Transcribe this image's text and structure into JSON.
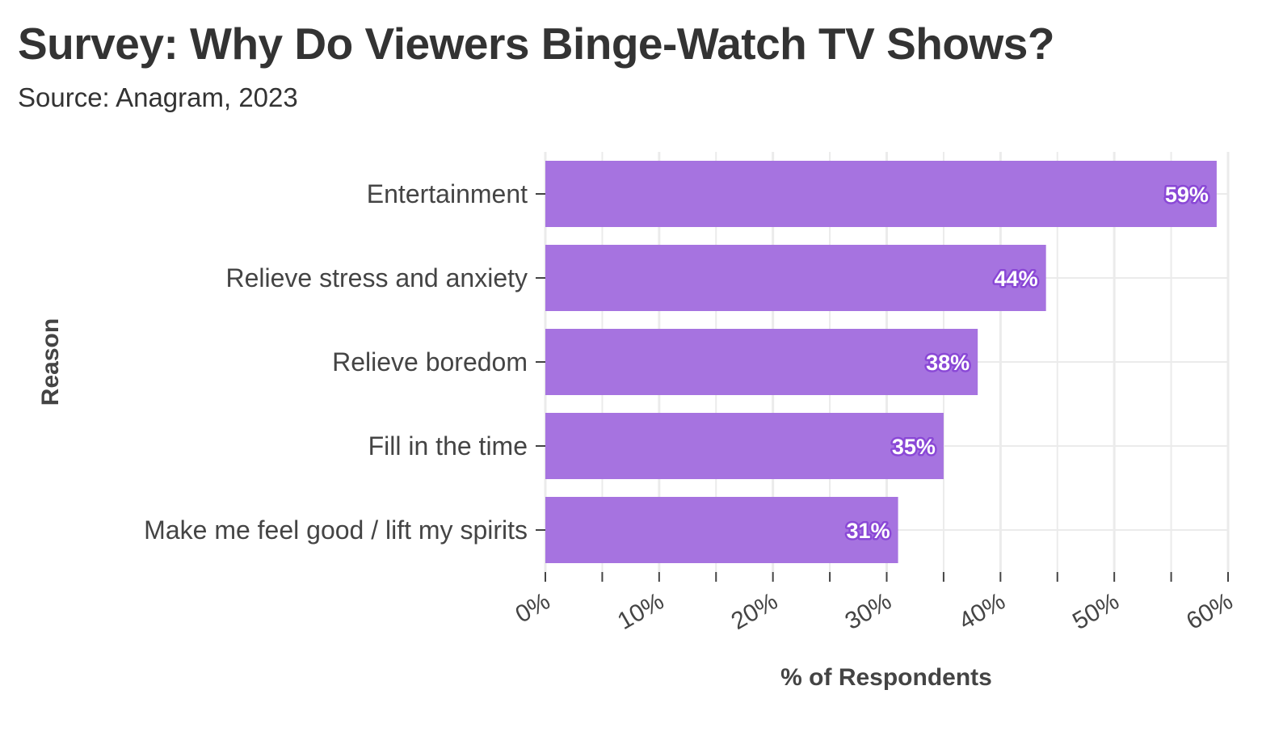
{
  "header": {
    "title": "Survey: Why Do Viewers Binge-Watch TV Shows?",
    "subtitle": "Source: Anagram, 2023"
  },
  "colors": {
    "bar": "#a673e0",
    "bar_label_outline": "#8a48d6",
    "grid": "#ebebeb",
    "text": "#333333"
  },
  "chart_data": {
    "type": "bar",
    "orientation": "horizontal",
    "title": "Survey: Why Do Viewers Binge-Watch TV Shows?",
    "subtitle": "Source: Anagram, 2023",
    "xlabel": "% of Respondents",
    "ylabel": "Reason",
    "categories": [
      "Entertainment",
      "Relieve stress and anxiety",
      "Relieve boredom",
      "Fill in the time",
      "Make me feel good / lift my spirits"
    ],
    "values": [
      59,
      44,
      38,
      35,
      31
    ],
    "value_labels": [
      "59%",
      "44%",
      "38%",
      "35%",
      "31%"
    ],
    "xlim": [
      0,
      60
    ],
    "xticks": [
      0,
      10,
      20,
      30,
      40,
      50,
      60
    ],
    "xtick_labels": [
      "0%",
      "10%",
      "20%",
      "30%",
      "40%",
      "50%",
      "60%"
    ],
    "grid": true,
    "legend": "none"
  }
}
